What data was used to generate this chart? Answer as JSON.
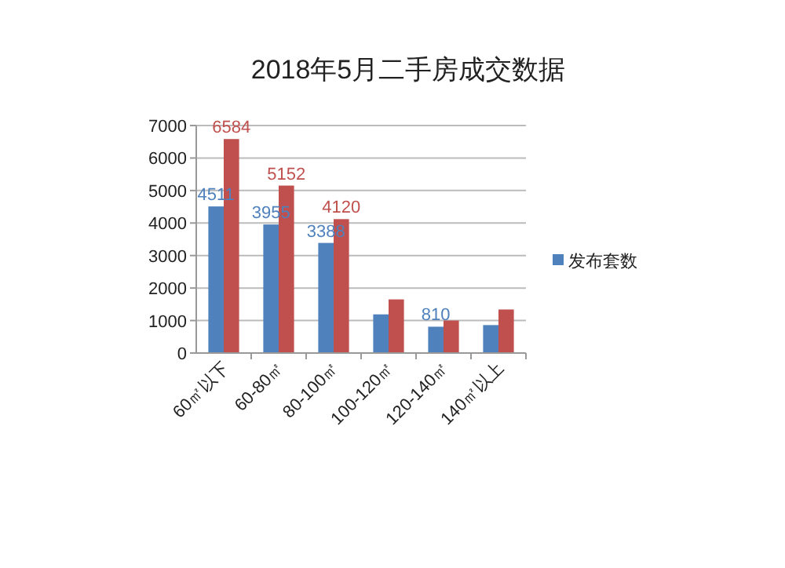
{
  "chart_data": {
    "type": "bar",
    "title": "2018年5月二手房成交数据",
    "categories": [
      "60㎡以下",
      "60-80㎡",
      "80-100㎡",
      "100-120㎡",
      "120-140㎡",
      "140㎡以上"
    ],
    "series": [
      {
        "name": "发布套数",
        "color": "#4f81bd",
        "values": [
          4511,
          3955,
          3388,
          1190,
          810,
          860
        ],
        "value_labels": [
          "4511",
          "3955",
          "3388",
          null,
          "810",
          null
        ]
      },
      {
        "color": "#c0504d",
        "values": [
          6584,
          5152,
          4120,
          1650,
          1000,
          1340
        ],
        "value_labels": [
          "6584",
          "5152",
          "4120",
          null,
          null,
          null
        ]
      }
    ],
    "ylim": [
      0,
      7000
    ],
    "yticks": [
      0,
      1000,
      2000,
      3000,
      4000,
      5000,
      6000,
      7000
    ],
    "grid": "y",
    "legend": "right"
  }
}
